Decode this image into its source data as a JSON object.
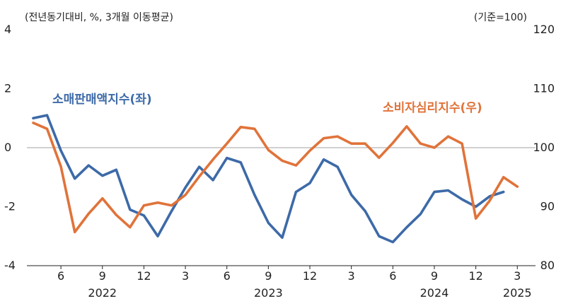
{
  "header": {
    "left_note": "(전년동기대비, %, 3개월 이동평균)",
    "right_note": "(기준=100)"
  },
  "chart_data": {
    "type": "line",
    "x": [
      "2022-04",
      "2022-05",
      "2022-06",
      "2022-07",
      "2022-08",
      "2022-09",
      "2022-10",
      "2022-11",
      "2022-12",
      "2023-01",
      "2023-02",
      "2023-03",
      "2023-04",
      "2023-05",
      "2023-06",
      "2023-07",
      "2023-08",
      "2023-09",
      "2023-10",
      "2023-11",
      "2023-12",
      "2024-01",
      "2024-02",
      "2024-03",
      "2024-04",
      "2024-05",
      "2024-06",
      "2024-07",
      "2024-08",
      "2024-09",
      "2024-10",
      "2024-11",
      "2024-12",
      "2025-01",
      "2025-02",
      "2025-03"
    ],
    "x_tick_labels": [
      {
        "x": "2022-06",
        "label": "6"
      },
      {
        "x": "2022-09",
        "label": "9"
      },
      {
        "x": "2022-12",
        "label": "12"
      },
      {
        "x": "2023-03",
        "label": "3"
      },
      {
        "x": "2023-06",
        "label": "6"
      },
      {
        "x": "2023-09",
        "label": "9"
      },
      {
        "x": "2023-12",
        "label": "12"
      },
      {
        "x": "2024-03",
        "label": "3"
      },
      {
        "x": "2024-06",
        "label": "6"
      },
      {
        "x": "2024-09",
        "label": "9"
      },
      {
        "x": "2024-12",
        "label": "12"
      },
      {
        "x": "2025-03",
        "label": "3"
      }
    ],
    "year_labels": [
      {
        "x": "2022-09",
        "label": "2022"
      },
      {
        "x": "2023-09",
        "label": "2023"
      },
      {
        "x": "2024-09",
        "label": "2024"
      },
      {
        "x": "2025-03",
        "label": "2025"
      }
    ],
    "y_left": {
      "ylim": [
        -4,
        4
      ],
      "ticks": [
        -4,
        -2,
        0,
        2,
        4
      ]
    },
    "y_right": {
      "ylim": [
        80,
        120
      ],
      "ticks": [
        80,
        90,
        100,
        110,
        120
      ]
    },
    "reference_line": {
      "axis": "left",
      "value": 0
    },
    "series": [
      {
        "name": "소매판매액지수(좌)",
        "axis": "left",
        "color": "#3d6aa8",
        "values": [
          1.0,
          1.1,
          -0.1,
          -1.05,
          -0.6,
          -0.95,
          -0.75,
          -2.1,
          -2.3,
          -3.0,
          -2.15,
          -1.35,
          -0.65,
          -1.1,
          -0.35,
          -0.5,
          -1.6,
          -2.55,
          -3.05,
          -1.5,
          -1.2,
          -0.4,
          -0.65,
          -1.6,
          -2.15,
          -3.0,
          -3.2,
          -2.7,
          -2.25,
          -1.5,
          -1.45,
          -1.75,
          -2.0,
          -1.65,
          -1.5,
          null
        ]
      },
      {
        "name": "소비자심리지수(우)",
        "axis": "right",
        "color": "#e0733a",
        "values": [
          104.2,
          103.2,
          96.8,
          85.7,
          88.8,
          91.4,
          88.6,
          86.5,
          90.2,
          90.7,
          90.2,
          92.0,
          95.1,
          98.0,
          100.7,
          103.5,
          103.2,
          99.6,
          97.8,
          97.0,
          99.5,
          101.6,
          101.9,
          100.7,
          100.7,
          98.3,
          100.8,
          103.6,
          100.7,
          100.0,
          101.9,
          100.7,
          88.0,
          91.0,
          95.0,
          93.4
        ]
      }
    ]
  }
}
